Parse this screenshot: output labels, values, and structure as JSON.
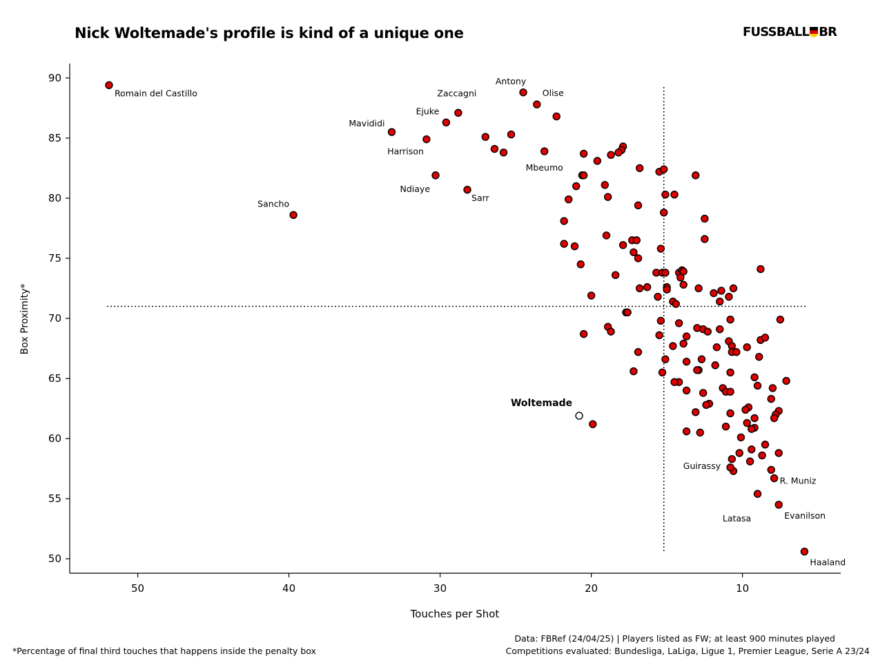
{
  "title": "Nick Woltemade's profile is kind of a unique one",
  "logo": {
    "left_text": "FUSSBALL",
    "right_text": "BR",
    "icon": "german-flag-shield-icon"
  },
  "footer": {
    "note": "*Percentage of final third touches that happens inside the penalty box",
    "source": "Data: FBRef (24/04/25) | Players listed as FW; at least 900 minutes played",
    "competitions": "Competitions evaluated: Bundesliga, LaLiga, Ligue 1, Premier League, Serie A 23/24"
  },
  "colors": {
    "point_fill": "#dd0000",
    "point_stroke": "#000000",
    "highlight_fill": "#ffffff"
  },
  "chart_data": {
    "type": "scatter",
    "xlabel": "Touches per Shot",
    "ylabel": "Box Proximity*",
    "x_reversed": true,
    "xlim": [
      54.5,
      3.5
    ],
    "ylim": [
      48.8,
      91.2
    ],
    "x_ticks": [
      50,
      40,
      30,
      20,
      10
    ],
    "y_ticks": [
      50,
      55,
      60,
      65,
      70,
      75,
      80,
      85,
      90
    ],
    "grid": false,
    "median_lines": {
      "x": 15.2,
      "y": 71.0
    },
    "highlight": {
      "label": "Woltemade",
      "x": 20.8,
      "y": 61.9
    },
    "labeled_points": [
      {
        "label": "Romain del Castillo",
        "x": 51.9,
        "y": 89.4
      },
      {
        "label": "Sancho",
        "x": 39.7,
        "y": 78.6
      },
      {
        "label": "Mavididi",
        "x": 33.2,
        "y": 85.5
      },
      {
        "label": "Harrison",
        "x": 30.9,
        "y": 84.9
      },
      {
        "label": "Ndiaye",
        "x": 30.3,
        "y": 81.9
      },
      {
        "label": "Ejuke",
        "x": 29.6,
        "y": 86.3
      },
      {
        "label": "Zaccagni",
        "x": 28.8,
        "y": 87.1
      },
      {
        "label": "Sarr",
        "x": 28.2,
        "y": 80.7
      },
      {
        "label": "Antony",
        "x": 24.5,
        "y": 88.8
      },
      {
        "label": "Olise",
        "x": 23.6,
        "y": 87.8
      },
      {
        "label": "Mbeumo",
        "x": 23.1,
        "y": 83.9
      },
      {
        "label": "Guirassy",
        "x": 10.8,
        "y": 57.6
      },
      {
        "label": "R. Muniz",
        "x": 7.9,
        "y": 56.7
      },
      {
        "label": "Latasa",
        "x": 9.0,
        "y": 55.4
      },
      {
        "label": "Evanilson",
        "x": 7.6,
        "y": 54.5
      },
      {
        "label": "Haaland",
        "x": 5.9,
        "y": 50.6
      }
    ],
    "points": [
      [
        22.3,
        86.8
      ],
      [
        27.0,
        85.1
      ],
      [
        25.3,
        85.3
      ],
      [
        26.4,
        84.1
      ],
      [
        25.8,
        83.8
      ],
      [
        20.5,
        83.7
      ],
      [
        19.6,
        83.1
      ],
      [
        18.7,
        83.6
      ],
      [
        17.9,
        84.3
      ],
      [
        18.0,
        84.0
      ],
      [
        18.2,
        83.8
      ],
      [
        16.8,
        82.5
      ],
      [
        15.5,
        82.2
      ],
      [
        15.2,
        82.4
      ],
      [
        13.1,
        81.9
      ],
      [
        20.6,
        81.9
      ],
      [
        20.5,
        81.9
      ],
      [
        19.1,
        81.1
      ],
      [
        21.0,
        81.0
      ],
      [
        15.1,
        80.3
      ],
      [
        14.5,
        80.3
      ],
      [
        18.9,
        80.1
      ],
      [
        21.5,
        79.9
      ],
      [
        16.9,
        79.4
      ],
      [
        15.2,
        78.8
      ],
      [
        21.8,
        78.1
      ],
      [
        12.5,
        78.3
      ],
      [
        21.8,
        76.2
      ],
      [
        21.1,
        76.0
      ],
      [
        19.0,
        76.9
      ],
      [
        17.9,
        76.1
      ],
      [
        17.3,
        76.5
      ],
      [
        17.0,
        76.5
      ],
      [
        12.5,
        76.6
      ],
      [
        15.4,
        75.8
      ],
      [
        17.2,
        75.5
      ],
      [
        16.9,
        75.0
      ],
      [
        20.7,
        74.5
      ],
      [
        8.8,
        74.1
      ],
      [
        18.4,
        73.6
      ],
      [
        15.7,
        73.8
      ],
      [
        15.3,
        73.8
      ],
      [
        15.1,
        73.8
      ],
      [
        14.2,
        73.8
      ],
      [
        14.0,
        74.0
      ],
      [
        13.9,
        73.9
      ],
      [
        14.1,
        73.4
      ],
      [
        16.3,
        72.6
      ],
      [
        16.8,
        72.5
      ],
      [
        15.0,
        72.6
      ],
      [
        15.0,
        72.4
      ],
      [
        13.9,
        72.8
      ],
      [
        12.9,
        72.5
      ],
      [
        11.4,
        72.3
      ],
      [
        11.9,
        72.1
      ],
      [
        10.6,
        72.5
      ],
      [
        10.9,
        71.8
      ],
      [
        15.6,
        71.8
      ],
      [
        20.0,
        71.9
      ],
      [
        14.6,
        71.4
      ],
      [
        14.4,
        71.2
      ],
      [
        11.5,
        71.4
      ],
      [
        17.7,
        70.5
      ],
      [
        17.6,
        70.5
      ],
      [
        15.4,
        69.8
      ],
      [
        10.8,
        69.9
      ],
      [
        7.5,
        69.9
      ],
      [
        14.2,
        69.6
      ],
      [
        13.0,
        69.2
      ],
      [
        12.6,
        69.1
      ],
      [
        11.5,
        69.1
      ],
      [
        12.3,
        68.9
      ],
      [
        18.9,
        69.3
      ],
      [
        18.7,
        68.9
      ],
      [
        20.5,
        68.7
      ],
      [
        15.5,
        68.6
      ],
      [
        13.7,
        68.5
      ],
      [
        10.9,
        68.1
      ],
      [
        8.8,
        68.2
      ],
      [
        8.5,
        68.4
      ],
      [
        14.6,
        67.7
      ],
      [
        13.9,
        67.9
      ],
      [
        10.7,
        67.7
      ],
      [
        9.7,
        67.6
      ],
      [
        11.7,
        67.6
      ],
      [
        10.7,
        67.2
      ],
      [
        10.4,
        67.2
      ],
      [
        16.9,
        67.2
      ],
      [
        15.1,
        66.6
      ],
      [
        12.7,
        66.6
      ],
      [
        8.9,
        66.8
      ],
      [
        13.7,
        66.4
      ],
      [
        11.8,
        66.1
      ],
      [
        12.9,
        65.7
      ],
      [
        17.2,
        65.6
      ],
      [
        15.3,
        65.5
      ],
      [
        13.0,
        65.7
      ],
      [
        10.8,
        65.5
      ],
      [
        9.2,
        65.1
      ],
      [
        7.1,
        64.8
      ],
      [
        14.2,
        64.7
      ],
      [
        14.5,
        64.7
      ],
      [
        9.0,
        64.4
      ],
      [
        11.3,
        64.2
      ],
      [
        11.1,
        63.9
      ],
      [
        10.8,
        63.9
      ],
      [
        13.7,
        64.0
      ],
      [
        12.6,
        63.8
      ],
      [
        8.0,
        64.2
      ],
      [
        8.1,
        63.3
      ],
      [
        12.2,
        62.9
      ],
      [
        12.4,
        62.8
      ],
      [
        9.6,
        62.6
      ],
      [
        9.8,
        62.4
      ],
      [
        7.6,
        62.3
      ],
      [
        7.8,
        62.0
      ],
      [
        13.1,
        62.2
      ],
      [
        10.8,
        62.1
      ],
      [
        7.9,
        61.7
      ],
      [
        9.2,
        61.7
      ],
      [
        9.7,
        61.3
      ],
      [
        11.1,
        61.0
      ],
      [
        9.2,
        60.9
      ],
      [
        9.4,
        60.8
      ],
      [
        13.7,
        60.6
      ],
      [
        12.8,
        60.5
      ],
      [
        10.1,
        60.1
      ],
      [
        8.5,
        59.5
      ],
      [
        9.4,
        59.1
      ],
      [
        10.2,
        58.8
      ],
      [
        8.7,
        58.6
      ],
      [
        7.6,
        58.8
      ],
      [
        10.7,
        58.3
      ],
      [
        9.5,
        58.1
      ],
      [
        10.6,
        57.3
      ],
      [
        8.1,
        57.4
      ],
      [
        19.9,
        61.2
      ]
    ]
  }
}
